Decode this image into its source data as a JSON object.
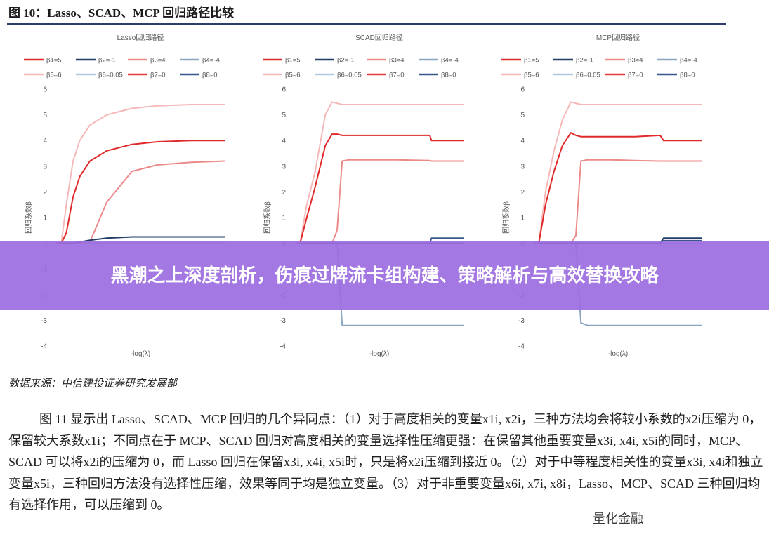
{
  "figure": {
    "title": "图 10：Lasso、SCAD、MCP 回归路径比较",
    "source": "数据来源：中信建投证券研究发展部"
  },
  "overlay": {
    "banner_text": "黑潮之上深度剖析，伤痕过牌流卡组构建、策略解析与高效替换攻略",
    "watermark": "量化金融"
  },
  "paragraph": {
    "text": "图 11 显示出 Lasso、SCAD、MCP 回归的几个异同点：（1）对于高度相关的变量x1i, x2i，三种方法均会将较小系数的x2i压缩为 0，保留较大系数x1i；不同点在于 MCP、SCAD 回归对高度相关的变量选择性压缩更强：在保留其他重要变量x3i, x4i, x5i的同时，MCP、SCAD 可以将x2i的压缩为 0，而 Lasso 回归在保留x3i, x4i, x5i时，只是将x2i压缩到接近 0。（2）对于中等程度相关性的变量x3i, x4i和独立变量x5i，三种回归方法没有选择性压缩，效果等同于均是独立变量。（3）对于非重要变量x6i, x7i, x8i，Lasso、MCP、SCAD 三种回归均有选择作用，可以压缩到 0。"
  },
  "legend_colors": [
    "#e02a2a",
    "#1f3d66",
    "#ec8a8a",
    "#8aa6c0",
    "#f6b8b8",
    "#b0c8dc",
    "#e23a3a",
    "#375a8a"
  ],
  "chart_data": [
    {
      "type": "line",
      "title": "Lasso回归路径",
      "xlabel": "-log(λ)",
      "ylabel": "回归系数β",
      "ylim": [
        -4,
        6
      ],
      "yticks": [
        -4,
        -3,
        -2,
        -1,
        0,
        1,
        2,
        3,
        4,
        5,
        6
      ],
      "grid": false,
      "legend_position": "top",
      "x": [
        0,
        0.03,
        0.06,
        0.1,
        0.14,
        0.2,
        0.3,
        0.45,
        0.6,
        0.8,
        1
      ],
      "series": [
        {
          "name": "β1=5",
          "color": "#e02a2a",
          "values": [
            0,
            0,
            0.4,
            1.8,
            2.6,
            3.2,
            3.6,
            3.85,
            3.95,
            4.0,
            4.0
          ]
        },
        {
          "name": "β2=-1",
          "color": "#1f3d66",
          "values": [
            0,
            0,
            0,
            0,
            0.05,
            0.12,
            0.2,
            0.25,
            0.25,
            0.25,
            0.25
          ]
        },
        {
          "name": "β3=4",
          "color": "#ec8a8a",
          "values": [
            0,
            0,
            0,
            0,
            0,
            0.05,
            1.6,
            2.8,
            3.05,
            3.15,
            3.2
          ]
        },
        {
          "name": "β4=-4",
          "color": "#8aa6c0",
          "values": [
            0,
            0,
            0,
            0,
            0,
            0,
            0,
            0,
            0,
            0,
            0
          ]
        },
        {
          "name": "β5=6",
          "color": "#f6b8b8",
          "values": [
            0,
            0,
            1.5,
            3.2,
            4.0,
            4.6,
            5.0,
            5.25,
            5.35,
            5.4,
            5.4
          ]
        },
        {
          "name": "β6=0.05",
          "color": "#b0c8dc",
          "values": [
            0,
            0,
            0,
            0,
            0,
            0,
            0,
            0,
            0,
            0,
            0
          ]
        },
        {
          "name": "β7=0",
          "color": "#e23a3a",
          "values": [
            0,
            0,
            0,
            0,
            0,
            0,
            0,
            0,
            0,
            0,
            0
          ]
        },
        {
          "name": "β8=0",
          "color": "#375a8a",
          "values": [
            0,
            0,
            0,
            0,
            0,
            0,
            0,
            0,
            0,
            0,
            0
          ]
        }
      ]
    },
    {
      "type": "line",
      "title": "SCAD回归路径",
      "xlabel": "-log(λ)",
      "ylabel": "回归系数β",
      "ylim": [
        -4,
        6
      ],
      "yticks": [
        -4,
        -3,
        -2,
        -1,
        0,
        1,
        2,
        3,
        4,
        5,
        6
      ],
      "grid": false,
      "legend_position": "top",
      "x": [
        0,
        0.03,
        0.07,
        0.12,
        0.18,
        0.22,
        0.25,
        0.28,
        0.32,
        0.4,
        0.6,
        0.8,
        0.81,
        1
      ],
      "series": [
        {
          "name": "β1=5",
          "color": "#e02a2a",
          "values": [
            0,
            0,
            1.0,
            2.2,
            3.8,
            4.25,
            4.25,
            4.2,
            4.2,
            4.2,
            4.2,
            4.2,
            4.0,
            4.0
          ]
        },
        {
          "name": "β2=-1",
          "color": "#1f3d66",
          "values": [
            0,
            0,
            0,
            0,
            0,
            0,
            0,
            0,
            0,
            0,
            0,
            0,
            0,
            0
          ]
        },
        {
          "name": "β3=4",
          "color": "#ec8a8a",
          "values": [
            0,
            0,
            0,
            0,
            0,
            0,
            0.5,
            3.2,
            3.25,
            3.25,
            3.25,
            3.22,
            3.2,
            3.2
          ]
        },
        {
          "name": "β4=-4",
          "color": "#8aa6c0",
          "values": [
            0,
            0,
            0,
            0,
            0,
            0,
            0,
            -3.2,
            -3.2,
            -3.2,
            -3.2,
            -3.2,
            -3.2,
            -3.2
          ]
        },
        {
          "name": "β5=6",
          "color": "#f6b8b8",
          "values": [
            0,
            0,
            1.5,
            2.8,
            5.0,
            5.5,
            5.45,
            5.4,
            5.4,
            5.4,
            5.4,
            5.4,
            5.4,
            5.4
          ]
        },
        {
          "name": "β6=0.05",
          "color": "#b0c8dc",
          "values": [
            0,
            0,
            0,
            0,
            0,
            0,
            0,
            0,
            0,
            0,
            0,
            0,
            0,
            0
          ]
        },
        {
          "name": "β7=0",
          "color": "#e23a3a",
          "values": [
            0,
            0,
            0,
            0,
            0,
            0,
            0,
            0,
            0,
            0,
            0,
            0,
            0,
            0
          ]
        },
        {
          "name": "β8=0",
          "color": "#375a8a",
          "values": [
            0,
            0,
            0,
            0,
            0,
            0,
            0,
            0,
            0,
            0,
            0,
            0,
            0.2,
            0.2
          ]
        }
      ]
    },
    {
      "type": "line",
      "title": "MCP回归路径",
      "xlabel": "-log(λ)",
      "ylabel": "回归系数β",
      "ylim": [
        -4,
        6
      ],
      "yticks": [
        -4,
        -3,
        -2,
        -1,
        0,
        1,
        2,
        3,
        4,
        5,
        6
      ],
      "grid": false,
      "legend_position": "top",
      "x": [
        0,
        0.03,
        0.07,
        0.12,
        0.17,
        0.22,
        0.25,
        0.28,
        0.32,
        0.45,
        0.6,
        0.75,
        0.77,
        1
      ],
      "series": [
        {
          "name": "β1=5",
          "color": "#e02a2a",
          "values": [
            0,
            0,
            1.5,
            2.8,
            3.8,
            4.3,
            4.2,
            4.15,
            4.15,
            4.15,
            4.15,
            4.2,
            4.0,
            4.0
          ]
        },
        {
          "name": "β2=-1",
          "color": "#1f3d66",
          "values": [
            0,
            0,
            0,
            0,
            0,
            0,
            0,
            0,
            0,
            0,
            0,
            0,
            0.2,
            0.2
          ]
        },
        {
          "name": "β3=4",
          "color": "#ec8a8a",
          "values": [
            0,
            0,
            0,
            0,
            0,
            0,
            0.3,
            3.2,
            3.25,
            3.25,
            3.22,
            3.2,
            3.2,
            3.2
          ]
        },
        {
          "name": "β4=-4",
          "color": "#8aa6c0",
          "values": [
            0,
            0,
            0,
            0,
            0,
            0,
            0,
            -3.1,
            -3.2,
            -3.2,
            -3.2,
            -3.2,
            -3.2,
            -3.2
          ]
        },
        {
          "name": "β5=6",
          "color": "#f6b8b8",
          "values": [
            0,
            0,
            2.0,
            3.6,
            4.8,
            5.5,
            5.45,
            5.4,
            5.4,
            5.4,
            5.4,
            5.4,
            5.4,
            5.4
          ]
        },
        {
          "name": "β6=0.05",
          "color": "#b0c8dc",
          "values": [
            0,
            0,
            0,
            0,
            0,
            0,
            0,
            0,
            0,
            0,
            0,
            0,
            0,
            0
          ]
        },
        {
          "name": "β7=0",
          "color": "#e23a3a",
          "values": [
            0,
            0,
            0,
            0,
            0,
            0,
            0,
            0,
            0,
            0,
            0,
            0,
            0,
            0
          ]
        },
        {
          "name": "β8=0",
          "color": "#375a8a",
          "values": [
            0,
            0,
            0,
            0,
            0,
            0,
            0,
            0,
            0,
            0,
            0,
            0,
            0.1,
            0.1
          ]
        }
      ]
    }
  ]
}
